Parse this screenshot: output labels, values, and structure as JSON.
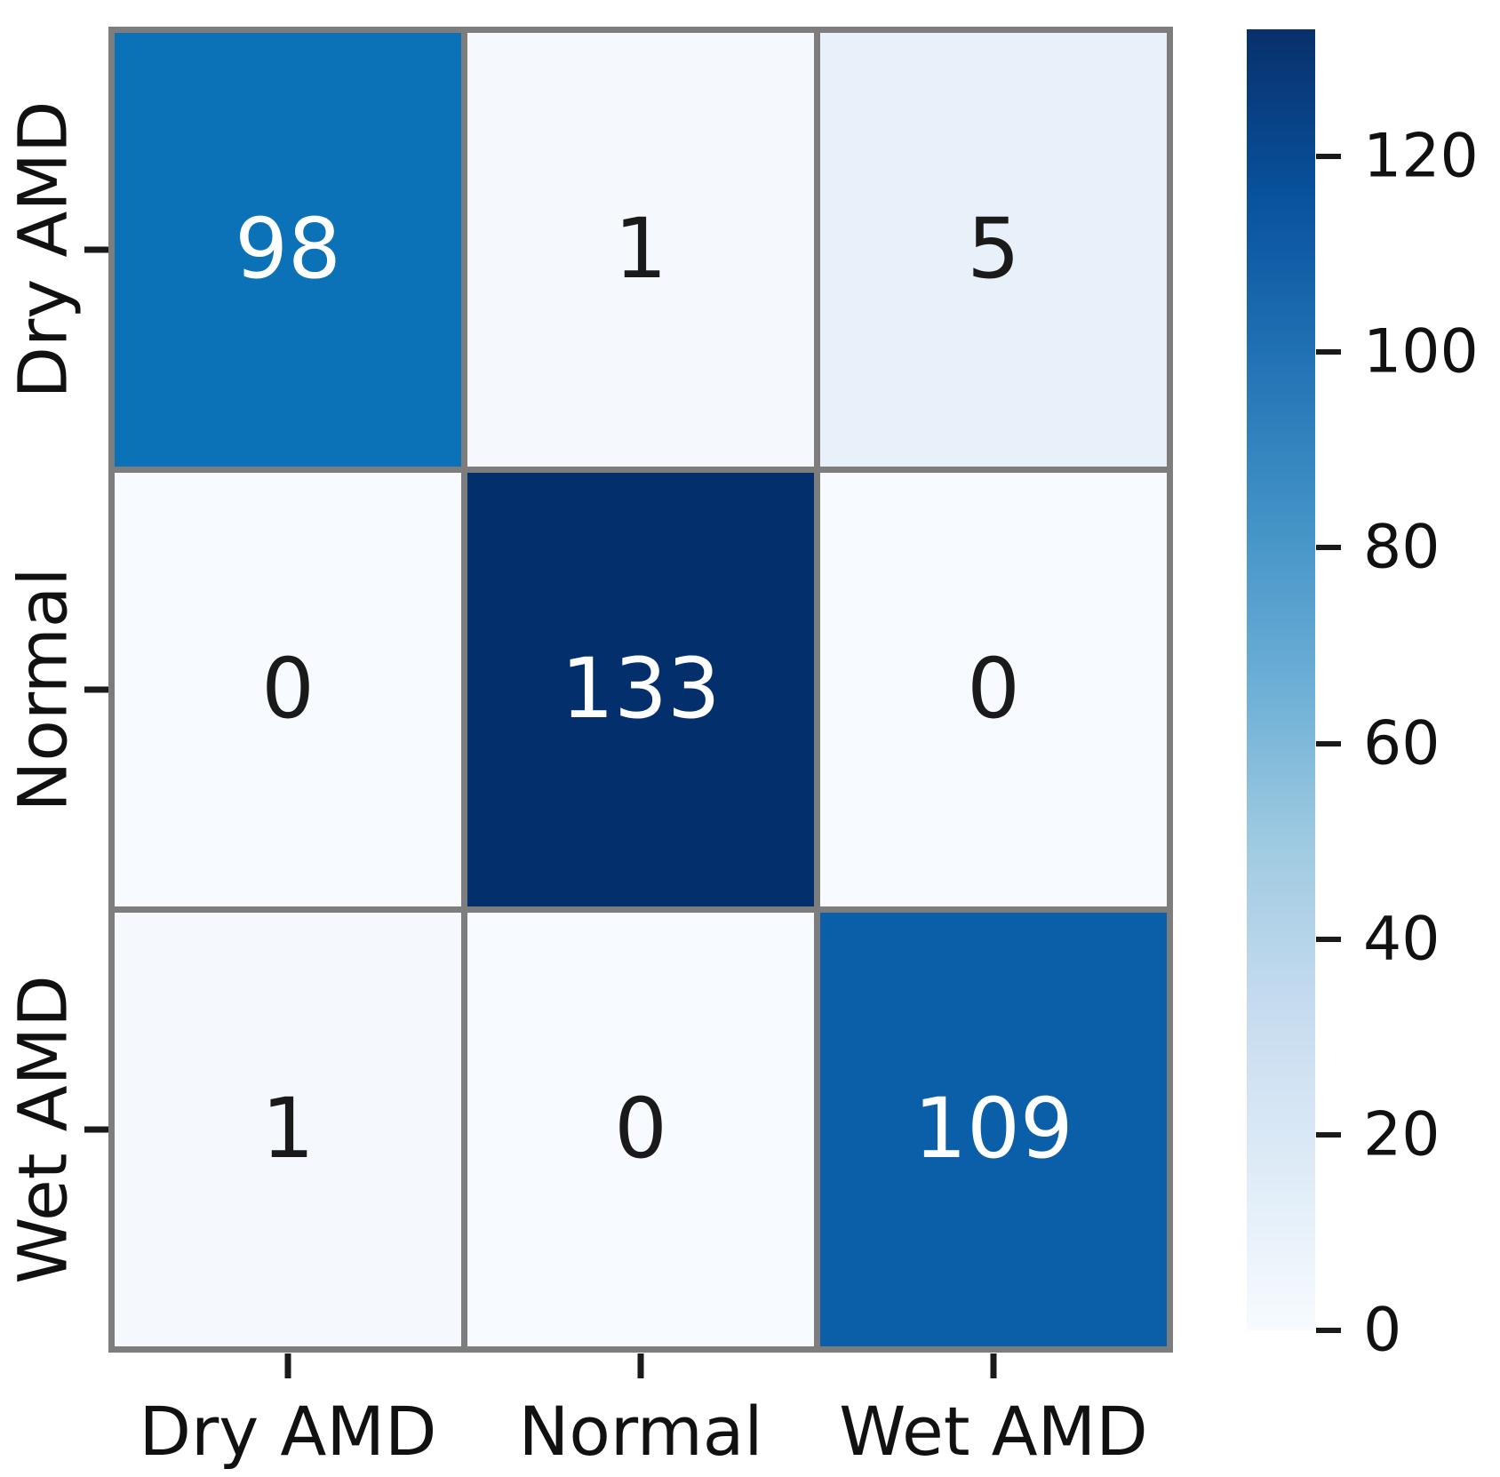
{
  "chart_data": {
    "type": "heatmap",
    "title": "",
    "col_labels": [
      "Dry AMD",
      "Normal",
      "Wet AMD"
    ],
    "row_labels": [
      "Dry AMD",
      "Normal",
      "Wet AMD"
    ],
    "matrix": [
      [
        98,
        1,
        5
      ],
      [
        0,
        133,
        0
      ],
      [
        1,
        0,
        109
      ]
    ],
    "vmin": 0,
    "vmax": 133,
    "colormap": "Blues",
    "cell_colors": [
      [
        "#0b72b8",
        "#f5f9fe",
        "#e8f0f9"
      ],
      [
        "#f7fbff",
        "#042f6d",
        "#f7fbff"
      ],
      [
        "#f5f9fe",
        "#f7fbff",
        "#0b5fa8"
      ]
    ],
    "cell_text_colors": [
      [
        "#ffffff",
        "#1a1a1a",
        "#1a1a1a"
      ],
      [
        "#1a1a1a",
        "#ffffff",
        "#1a1a1a"
      ],
      [
        "#1a1a1a",
        "#1a1a1a",
        "#ffffff"
      ]
    ],
    "colorbar": {
      "ticks": [
        0,
        20,
        40,
        60,
        80,
        100,
        120
      ],
      "gradient_stops": [
        "#f7fbff",
        "#deebf7",
        "#c6dbef",
        "#9ecae1",
        "#6baed6",
        "#4292c6",
        "#2171b5",
        "#08519c",
        "#08306b"
      ]
    },
    "grid_on": false,
    "legend_position": "right-colorbar"
  },
  "colors": {
    "grid_line": "#7d7d7d",
    "tick_mark": "#1a1a1a",
    "background": "#ffffff"
  }
}
